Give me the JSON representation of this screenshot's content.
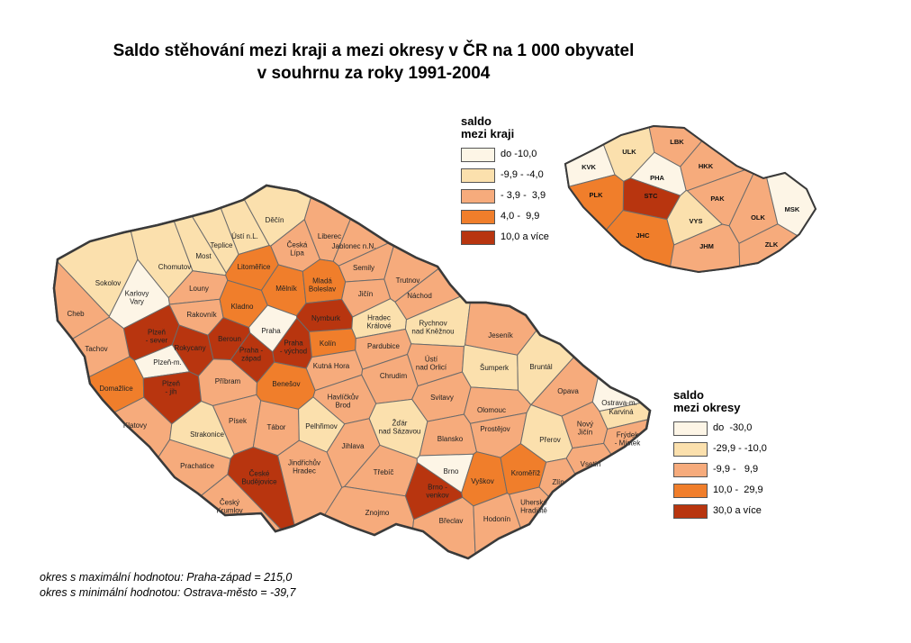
{
  "title": {
    "line1": "Saldo stěhování mezi kraji a mezi okresy v ČR na 1 000 obyvatel",
    "line2": "v souhrnu za roky 1991-2004"
  },
  "colors": {
    "c1": "#fdf5e6",
    "c2": "#fbe0ad",
    "c3": "#f6ab7c",
    "c4": "#f07e2b",
    "c5": "#b8350f"
  },
  "legend_kraje": {
    "title_line1": "saldo",
    "title_line2": "mezi kraji",
    "items": [
      {
        "label": "do -10,0",
        "color": "#fdf5e6"
      },
      {
        "label": "-9,9 - -4,0",
        "color": "#fbe0ad"
      },
      {
        "label": "- 3,9 -  3,9",
        "color": "#f6ab7c"
      },
      {
        "label": "4,0 -  9,9",
        "color": "#f07e2b"
      },
      {
        "label": "10,0 a více",
        "color": "#b8350f"
      }
    ]
  },
  "legend_okresy": {
    "title_line1": "saldo",
    "title_line2": "mezi okresy",
    "items": [
      {
        "label": "do  -30,0",
        "color": "#fdf5e6"
      },
      {
        "label": "-29,9 - -10,0",
        "color": "#fbe0ad"
      },
      {
        "label": "-9,9 -   9,9",
        "color": "#f6ab7c"
      },
      {
        "label": "10,0 -  29,9",
        "color": "#f07e2b"
      },
      {
        "label": "30,0 a více",
        "color": "#b8350f"
      }
    ]
  },
  "kraje": [
    {
      "code": "KVK",
      "cls": 1
    },
    {
      "code": "ULK",
      "cls": 2
    },
    {
      "code": "LBK",
      "cls": 3
    },
    {
      "code": "HKK",
      "cls": 3
    },
    {
      "code": "PHA",
      "cls": 1
    },
    {
      "code": "STC",
      "cls": 5
    },
    {
      "code": "PLK",
      "cls": 4
    },
    {
      "code": "PAK",
      "cls": 3
    },
    {
      "code": "VYS",
      "cls": 2
    },
    {
      "code": "OLK",
      "cls": 3
    },
    {
      "code": "MSK",
      "cls": 1
    },
    {
      "code": "JHC",
      "cls": 4
    },
    {
      "code": "JHM",
      "cls": 3
    },
    {
      "code": "ZLK",
      "cls": 3
    }
  ],
  "okresy": [
    {
      "name": "Děčín",
      "cls": 2
    },
    {
      "name": "Liberec",
      "cls": 3
    },
    {
      "name": "Ústí n.L.",
      "cls": 2
    },
    {
      "name": "Teplice",
      "cls": 2
    },
    {
      "name": "Česká Lípa",
      "cls": 3
    },
    {
      "name": "Jablonec n.N.",
      "cls": 3
    },
    {
      "name": "Chomutov",
      "cls": 2
    },
    {
      "name": "Most",
      "cls": 2
    },
    {
      "name": "Litoměřice",
      "cls": 4
    },
    {
      "name": "Semily",
      "cls": 3
    },
    {
      "name": "Sokolov",
      "cls": 2
    },
    {
      "name": "Karlovy Vary",
      "cls": 1
    },
    {
      "name": "Louny",
      "cls": 3
    },
    {
      "name": "Mělník",
      "cls": 4
    },
    {
      "name": "Mladá Boleslav",
      "cls": 4
    },
    {
      "name": "Jičín",
      "cls": 3
    },
    {
      "name": "Trutnov",
      "cls": 3
    },
    {
      "name": "Náchod",
      "cls": 3
    },
    {
      "name": "Cheb",
      "cls": 3
    },
    {
      "name": "Rakovník",
      "cls": 3
    },
    {
      "name": "Kladno",
      "cls": 4
    },
    {
      "name": "Praha",
      "cls": 1
    },
    {
      "name": "Nymburk",
      "cls": 5
    },
    {
      "name": "Hradec Králové",
      "cls": 2
    },
    {
      "name": "Rychnov nad Kněžnou",
      "cls": 2
    },
    {
      "name": "Plzeň - sever",
      "cls": 5
    },
    {
      "name": "Rokycany",
      "cls": 5
    },
    {
      "name": "Beroun",
      "cls": 5
    },
    {
      "name": "Praha - západ",
      "cls": 5
    },
    {
      "name": "Praha - východ",
      "cls": 5
    },
    {
      "name": "Kolín",
      "cls": 4
    },
    {
      "name": "Pardubice",
      "cls": 3
    },
    {
      "name": "Jeseník",
      "cls": 3
    },
    {
      "name": "Tachov",
      "cls": 3
    },
    {
      "name": "Plzeň-m.",
      "cls": 1
    },
    {
      "name": "Kutná Hora",
      "cls": 3
    },
    {
      "name": "Ústí nad Orlicí",
      "cls": 3
    },
    {
      "name": "Šumperk",
      "cls": 2
    },
    {
      "name": "Bruntál",
      "cls": 2
    },
    {
      "name": "Domažlice",
      "cls": 4
    },
    {
      "name": "Plzeň - jih",
      "cls": 5
    },
    {
      "name": "Příbram",
      "cls": 3
    },
    {
      "name": "Benešov",
      "cls": 4
    },
    {
      "name": "Chrudim",
      "cls": 3
    },
    {
      "name": "Opava",
      "cls": 3
    },
    {
      "name": "Ostrava-m.",
      "cls": 1
    },
    {
      "name": "Karviná",
      "cls": 2
    },
    {
      "name": "Havlíčkův Brod",
      "cls": 3
    },
    {
      "name": "Svitavy",
      "cls": 3
    },
    {
      "name": "Klatovy",
      "cls": 3
    },
    {
      "name": "Písek",
      "cls": 3
    },
    {
      "name": "Tábor",
      "cls": 3
    },
    {
      "name": "Pelhřimov",
      "cls": 2
    },
    {
      "name": "Žďár nad Sázavou",
      "cls": 2
    },
    {
      "name": "Olomouc",
      "cls": 3
    },
    {
      "name": "Nový Jičín",
      "cls": 3
    },
    {
      "name": "Frýdek - Místek",
      "cls": 3
    },
    {
      "name": "Strakonice",
      "cls": 2
    },
    {
      "name": "Jihlava",
      "cls": 3
    },
    {
      "name": "Blansko",
      "cls": 3
    },
    {
      "name": "Prostějov",
      "cls": 3
    },
    {
      "name": "Přerov",
      "cls": 2
    },
    {
      "name": "Prachatice",
      "cls": 3
    },
    {
      "name": "České Budějovice",
      "cls": 5
    },
    {
      "name": "Jindřichův Hradec",
      "cls": 3
    },
    {
      "name": "Třebíč",
      "cls": 3
    },
    {
      "name": "Brno",
      "cls": 1
    },
    {
      "name": "Brno - venkov",
      "cls": 5
    },
    {
      "name": "Vyškov",
      "cls": 4
    },
    {
      "name": "Kroměříž",
      "cls": 4
    },
    {
      "name": "Vsetín",
      "cls": 3
    },
    {
      "name": "Zlín",
      "cls": 3
    },
    {
      "name": "Český Krumlov",
      "cls": 3
    },
    {
      "name": "Znojmo",
      "cls": 3
    },
    {
      "name": "Břeclav",
      "cls": 3
    },
    {
      "name": "Hodonín",
      "cls": 3
    },
    {
      "name": "Uherské Hradiště",
      "cls": 3
    }
  ],
  "notes": {
    "line1": "okres s maximální hodnotou: Praha-západ = 215,0",
    "line2": "okres s minimální hodnotou: Ostrava-město = -39,7"
  }
}
